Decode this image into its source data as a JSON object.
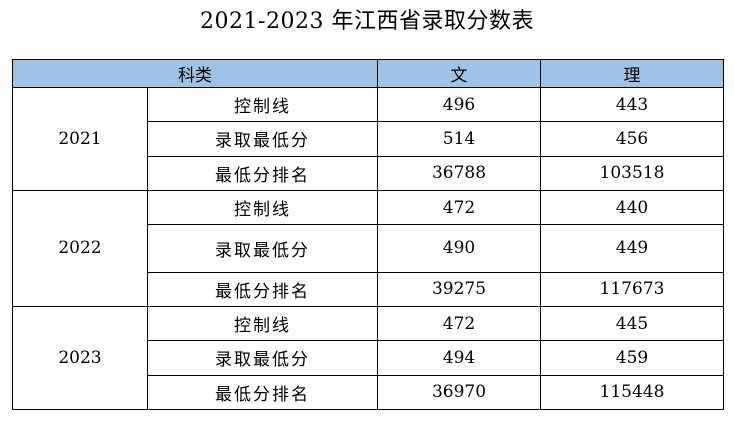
{
  "title": "2021-2023 年江西省录取分数表",
  "table": {
    "headers": {
      "category": "科类",
      "wen": "文",
      "li": "理"
    },
    "groups": [
      {
        "year": "2021",
        "rows": [
          {
            "metric": "控制线",
            "wen": "496",
            "li": "443"
          },
          {
            "metric": "录取最低分",
            "wen": "514",
            "li": "456"
          },
          {
            "metric": "最低分排名",
            "wen": "36788",
            "li": "103518"
          }
        ]
      },
      {
        "year": "2022",
        "rows": [
          {
            "metric": "控制线",
            "wen": "472",
            "li": "440"
          },
          {
            "metric": "录取最低分",
            "wen": "490",
            "li": "449"
          },
          {
            "metric": "最低分排名",
            "wen": "39275",
            "li": "117673"
          }
        ]
      },
      {
        "year": "2023",
        "rows": [
          {
            "metric": "控制线",
            "wen": "472",
            "li": "445"
          },
          {
            "metric": "录取最低分",
            "wen": "494",
            "li": "459"
          },
          {
            "metric": "最低分排名",
            "wen": "36970",
            "li": "115448"
          }
        ]
      }
    ]
  }
}
